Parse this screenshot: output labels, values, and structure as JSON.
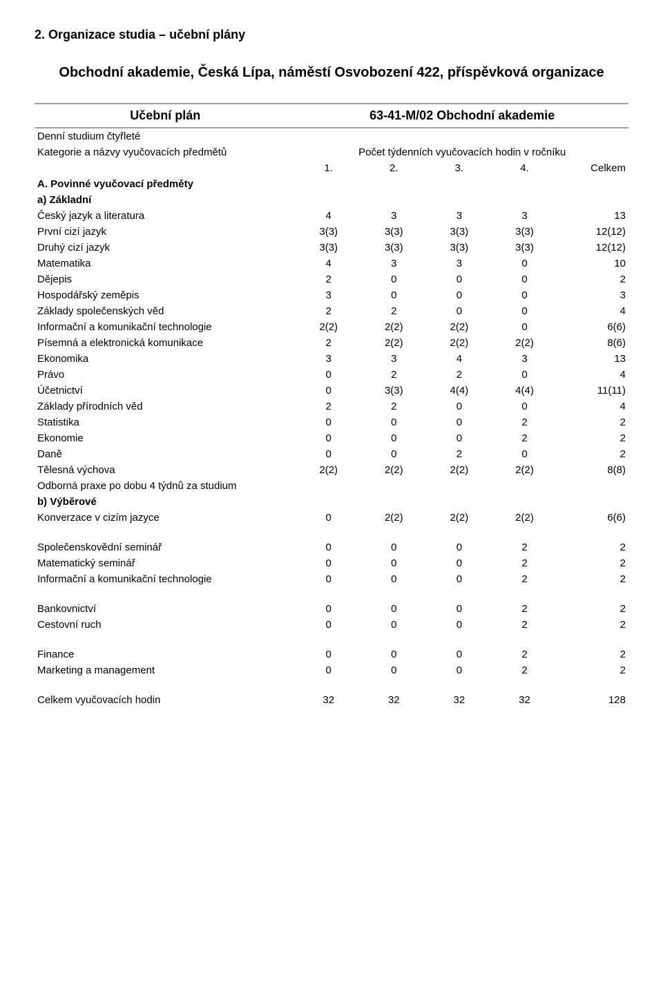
{
  "heading": "2.  Organizace studia – učební plány",
  "orgName": "Obchodní akademie, Česká Lípa, náměstí Osvobození 422, příspěvková organizace",
  "planLabel": "Učební plán",
  "planCode": "63-41-M/02   Obchodní akademie",
  "studyType": "Denní studium čtyřleté",
  "categoryLabel": "Kategorie a názvy vyučovacích předmětů",
  "hoursLabel": "Počet týdenních vyučovacích hodin v ročníku",
  "yearHeaders": {
    "y1": "1.",
    "y2": "2.",
    "y3": "3.",
    "y4": "4.",
    "total": "Celkem"
  },
  "mandatoryLabel": "A. Povinné vyučovací předměty",
  "groupA": "a) Základní",
  "groupB": "b) Výběrové",
  "subjects": {
    "r0": {
      "name": "Český jazyk a literatura",
      "v": [
        "4",
        "3",
        "3",
        "3",
        "13"
      ]
    },
    "r1": {
      "name": "První cizí jazyk",
      "v": [
        "3(3)",
        "3(3)",
        "3(3)",
        "3(3)",
        "12(12)"
      ]
    },
    "r2": {
      "name": "Druhý cizí jazyk",
      "v": [
        "3(3)",
        "3(3)",
        "3(3)",
        "3(3)",
        "12(12)"
      ]
    },
    "r3": {
      "name": "Matematika",
      "v": [
        "4",
        "3",
        "3",
        "0",
        "10"
      ]
    },
    "r4": {
      "name": "Dějepis",
      "v": [
        "2",
        "0",
        "0",
        "0",
        "2"
      ]
    },
    "r5": {
      "name": "Hospodářský zeměpis",
      "v": [
        "3",
        "0",
        "0",
        "0",
        "3"
      ]
    },
    "r6": {
      "name": "Základy společenských věd",
      "v": [
        "2",
        "2",
        "0",
        "0",
        "4"
      ]
    },
    "r7": {
      "name": "Informační a komunikační technologie",
      "v": [
        "2(2)",
        "2(2)",
        "2(2)",
        "0",
        "6(6)"
      ]
    },
    "r8": {
      "name": "Písemná a elektronická komunikace",
      "v": [
        "2",
        "2(2)",
        "2(2)",
        "2(2)",
        "8(6)"
      ]
    },
    "r9": {
      "name": "Ekonomika",
      "v": [
        "3",
        "3",
        "4",
        "3",
        "13"
      ]
    },
    "r10": {
      "name": "Právo",
      "v": [
        "0",
        "2",
        "2",
        "0",
        "4"
      ]
    },
    "r11": {
      "name": "Účetnictví",
      "v": [
        "0",
        "3(3)",
        "4(4)",
        "4(4)",
        "11(11)"
      ]
    },
    "r12": {
      "name": "Základy přírodních věd",
      "v": [
        "2",
        "2",
        "0",
        "0",
        "4"
      ]
    },
    "r13": {
      "name": "Statistika",
      "v": [
        "0",
        "0",
        "0",
        "2",
        "2"
      ]
    },
    "r14": {
      "name": "Ekonomie",
      "v": [
        "0",
        "0",
        "0",
        "2",
        "2"
      ]
    },
    "r15": {
      "name": "Daně",
      "v": [
        "0",
        "0",
        "2",
        "0",
        "2"
      ]
    },
    "r16": {
      "name": "Tělesná výchova",
      "v": [
        "2(2)",
        "2(2)",
        "2(2)",
        "2(2)",
        "8(8)"
      ]
    }
  },
  "praxe": "Odborná praxe po dobu 4 týdnů za studium",
  "electives": {
    "e0": {
      "name": "Konverzace v cizím jazyce",
      "v": [
        "0",
        "2(2)",
        "2(2)",
        "2(2)",
        "6(6)"
      ]
    },
    "e1": {
      "name": "Společenskovědní seminář",
      "v": [
        "0",
        "0",
        "0",
        "2",
        "2"
      ]
    },
    "e2": {
      "name": "Matematický seminář",
      "v": [
        "0",
        "0",
        "0",
        "2",
        "2"
      ]
    },
    "e3": {
      "name": "Informační a komunikační technologie",
      "v": [
        "0",
        "0",
        "0",
        "2",
        "2"
      ]
    },
    "e4": {
      "name": "Bankovnictví",
      "v": [
        "0",
        "0",
        "0",
        "2",
        "2"
      ]
    },
    "e5": {
      "name": "Cestovní ruch",
      "v": [
        "0",
        "0",
        "0",
        "2",
        "2"
      ]
    },
    "e6": {
      "name": "Finance",
      "v": [
        "0",
        "0",
        "0",
        "2",
        "2"
      ]
    },
    "e7": {
      "name": "Marketing a management",
      "v": [
        "0",
        "0",
        "0",
        "2",
        "2"
      ]
    }
  },
  "totalRow": {
    "name": "Celkem vyučovacích hodin",
    "v": [
      "32",
      "32",
      "32",
      "32",
      "128"
    ]
  },
  "style": {
    "background": "#ffffff",
    "textColor": "#000000",
    "ruleColor": "#a0a0a0",
    "fontSizeBody": 15,
    "fontSizeHeading": 18,
    "fontSizeOrg": 20,
    "fontSizePlanRow": 18,
    "colWidths": {
      "label": "44%",
      "year": "11%",
      "total": "12%"
    }
  }
}
